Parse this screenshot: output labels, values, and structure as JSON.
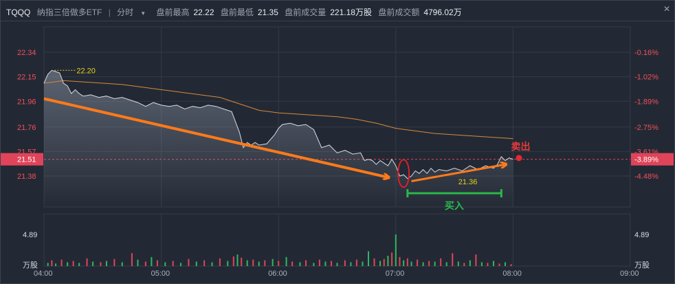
{
  "header": {
    "symbol": "TQQQ",
    "name": "纳指三倍做多ETF",
    "separator": "|",
    "mode": "分时",
    "mode_dropdown_icon": "caret-down-icon",
    "stats": [
      {
        "label": "盘前最高",
        "value": "22.22"
      },
      {
        "label": "盘前最低",
        "value": "21.35"
      },
      {
        "label": "盘前成交量",
        "value": "221.18万股"
      },
      {
        "label": "盘前成交额",
        "value": "4796.02万"
      }
    ],
    "close_icon": "close-icon"
  },
  "chart_data": {
    "type": "line",
    "price_axis_labels": [
      "22.34",
      "22.15",
      "21.96",
      "21.76",
      "21.57",
      "21.38"
    ],
    "price_axis_values": [
      22.34,
      22.15,
      21.96,
      21.76,
      21.57,
      21.38
    ],
    "pct_axis_labels": [
      "-0.16%",
      "-1.02%",
      "-1.89%",
      "-2.75%",
      "-3.61%",
      "-4.48%"
    ],
    "current_price": "21.51",
    "current_pct": "-3.89%",
    "x_tick_labels": [
      "04:00",
      "05:00",
      "06:00",
      "07:00",
      "08:00",
      "09:00"
    ],
    "x_tick_minutes": [
      0,
      60,
      120,
      180,
      240,
      300
    ],
    "ylim": [
      21.3,
      22.4
    ],
    "high_marker": "22.20",
    "low_marker": "21.36",
    "volume_axis_label": "4.89",
    "volume_unit": "万股",
    "price_series": [
      {
        "t": 0,
        "p": 22.1
      },
      {
        "t": 2,
        "p": 22.17
      },
      {
        "t": 4,
        "p": 22.2
      },
      {
        "t": 6,
        "p": 22.19
      },
      {
        "t": 8,
        "p": 22.18
      },
      {
        "t": 10,
        "p": 22.1
      },
      {
        "t": 12,
        "p": 22.08
      },
      {
        "t": 14,
        "p": 22.02
      },
      {
        "t": 16,
        "p": 22.05
      },
      {
        "t": 18,
        "p": 22.02
      },
      {
        "t": 20,
        "p": 22.0
      },
      {
        "t": 24,
        "p": 22.01
      },
      {
        "t": 28,
        "p": 21.99
      },
      {
        "t": 32,
        "p": 22.0
      },
      {
        "t": 36,
        "p": 21.98
      },
      {
        "t": 40,
        "p": 21.99
      },
      {
        "t": 44,
        "p": 21.97
      },
      {
        "t": 48,
        "p": 21.95
      },
      {
        "t": 52,
        "p": 21.92
      },
      {
        "t": 56,
        "p": 21.95
      },
      {
        "t": 60,
        "p": 21.93
      },
      {
        "t": 64,
        "p": 21.92
      },
      {
        "t": 68,
        "p": 21.93
      },
      {
        "t": 72,
        "p": 21.9
      },
      {
        "t": 76,
        "p": 21.92
      },
      {
        "t": 80,
        "p": 21.91
      },
      {
        "t": 84,
        "p": 21.93
      },
      {
        "t": 88,
        "p": 21.92
      },
      {
        "t": 92,
        "p": 21.9
      },
      {
        "t": 96,
        "p": 21.88
      },
      {
        "t": 98,
        "p": 21.8
      },
      {
        "t": 100,
        "p": 21.72
      },
      {
        "t": 102,
        "p": 21.6
      },
      {
        "t": 104,
        "p": 21.64
      },
      {
        "t": 106,
        "p": 21.62
      },
      {
        "t": 108,
        "p": 21.64
      },
      {
        "t": 110,
        "p": 21.62
      },
      {
        "t": 114,
        "p": 21.63
      },
      {
        "t": 118,
        "p": 21.7
      },
      {
        "t": 120,
        "p": 21.75
      },
      {
        "t": 122,
        "p": 21.78
      },
      {
        "t": 126,
        "p": 21.79
      },
      {
        "t": 130,
        "p": 21.77
      },
      {
        "t": 134,
        "p": 21.78
      },
      {
        "t": 138,
        "p": 21.74
      },
      {
        "t": 142,
        "p": 21.6
      },
      {
        "t": 146,
        "p": 21.62
      },
      {
        "t": 150,
        "p": 21.56
      },
      {
        "t": 154,
        "p": 21.58
      },
      {
        "t": 158,
        "p": 21.55
      },
      {
        "t": 162,
        "p": 21.56
      },
      {
        "t": 164,
        "p": 21.5
      },
      {
        "t": 166,
        "p": 21.51
      },
      {
        "t": 168,
        "p": 21.5
      },
      {
        "t": 170,
        "p": 21.47
      },
      {
        "t": 172,
        "p": 21.5
      },
      {
        "t": 174,
        "p": 21.48
      },
      {
        "t": 176,
        "p": 21.46
      },
      {
        "t": 178,
        "p": 21.51
      },
      {
        "t": 180,
        "p": 21.46
      },
      {
        "t": 182,
        "p": 21.38
      },
      {
        "t": 184,
        "p": 21.39
      },
      {
        "t": 186,
        "p": 21.36
      },
      {
        "t": 188,
        "p": 21.38
      },
      {
        "t": 190,
        "p": 21.42
      },
      {
        "t": 192,
        "p": 21.4
      },
      {
        "t": 194,
        "p": 21.43
      },
      {
        "t": 196,
        "p": 21.4
      },
      {
        "t": 198,
        "p": 21.44
      },
      {
        "t": 200,
        "p": 21.41
      },
      {
        "t": 202,
        "p": 21.43
      },
      {
        "t": 206,
        "p": 21.42
      },
      {
        "t": 210,
        "p": 21.44
      },
      {
        "t": 214,
        "p": 21.42
      },
      {
        "t": 218,
        "p": 21.46
      },
      {
        "t": 222,
        "p": 21.43
      },
      {
        "t": 226,
        "p": 21.46
      },
      {
        "t": 230,
        "p": 21.44
      },
      {
        "t": 232,
        "p": 21.47
      },
      {
        "t": 234,
        "p": 21.53
      },
      {
        "t": 236,
        "p": 21.5
      },
      {
        "t": 238,
        "p": 21.52
      },
      {
        "t": 240,
        "p": 21.51
      }
    ],
    "avg_series": [
      {
        "t": 0,
        "p": 22.1
      },
      {
        "t": 10,
        "p": 22.12
      },
      {
        "t": 20,
        "p": 22.11
      },
      {
        "t": 30,
        "p": 22.1
      },
      {
        "t": 40,
        "p": 22.09
      },
      {
        "t": 50,
        "p": 22.07
      },
      {
        "t": 60,
        "p": 22.05
      },
      {
        "t": 70,
        "p": 22.03
      },
      {
        "t": 80,
        "p": 22.01
      },
      {
        "t": 90,
        "p": 21.99
      },
      {
        "t": 100,
        "p": 21.94
      },
      {
        "t": 110,
        "p": 21.89
      },
      {
        "t": 120,
        "p": 21.87
      },
      {
        "t": 130,
        "p": 21.86
      },
      {
        "t": 140,
        "p": 21.85
      },
      {
        "t": 150,
        "p": 21.84
      },
      {
        "t": 160,
        "p": 21.82
      },
      {
        "t": 170,
        "p": 21.79
      },
      {
        "t": 180,
        "p": 21.75
      },
      {
        "t": 190,
        "p": 21.73
      },
      {
        "t": 200,
        "p": 21.71
      },
      {
        "t": 210,
        "p": 21.7
      },
      {
        "t": 220,
        "p": 21.69
      },
      {
        "t": 230,
        "p": 21.68
      },
      {
        "t": 240,
        "p": 21.67
      }
    ],
    "volume_series": [
      {
        "t": 2,
        "v": 0.5,
        "up": true
      },
      {
        "t": 4,
        "v": 0.9,
        "up": false
      },
      {
        "t": 6,
        "v": 0.4,
        "up": true
      },
      {
        "t": 9,
        "v": 1.0,
        "up": false
      },
      {
        "t": 12,
        "v": 0.6,
        "up": true
      },
      {
        "t": 15,
        "v": 0.8,
        "up": false
      },
      {
        "t": 18,
        "v": 0.5,
        "up": true
      },
      {
        "t": 22,
        "v": 1.2,
        "up": false
      },
      {
        "t": 25,
        "v": 0.7,
        "up": true
      },
      {
        "t": 29,
        "v": 0.6,
        "up": false
      },
      {
        "t": 32,
        "v": 0.8,
        "up": true
      },
      {
        "t": 36,
        "v": 1.1,
        "up": false
      },
      {
        "t": 40,
        "v": 0.6,
        "up": true
      },
      {
        "t": 45,
        "v": 2.0,
        "up": false
      },
      {
        "t": 48,
        "v": 1.0,
        "up": true
      },
      {
        "t": 52,
        "v": 0.7,
        "up": false
      },
      {
        "t": 55,
        "v": 1.4,
        "up": true
      },
      {
        "t": 58,
        "v": 0.9,
        "up": false
      },
      {
        "t": 62,
        "v": 0.6,
        "up": true
      },
      {
        "t": 66,
        "v": 0.8,
        "up": false
      },
      {
        "t": 70,
        "v": 0.5,
        "up": true
      },
      {
        "t": 74,
        "v": 1.1,
        "up": false
      },
      {
        "t": 78,
        "v": 0.7,
        "up": true
      },
      {
        "t": 82,
        "v": 0.9,
        "up": false
      },
      {
        "t": 86,
        "v": 0.6,
        "up": true
      },
      {
        "t": 90,
        "v": 1.2,
        "up": false
      },
      {
        "t": 94,
        "v": 0.8,
        "up": true
      },
      {
        "t": 97,
        "v": 1.5,
        "up": false
      },
      {
        "t": 99,
        "v": 1.8,
        "up": true
      },
      {
        "t": 101,
        "v": 1.3,
        "up": false
      },
      {
        "t": 104,
        "v": 0.9,
        "up": true
      },
      {
        "t": 107,
        "v": 1.0,
        "up": false
      },
      {
        "t": 110,
        "v": 0.7,
        "up": true
      },
      {
        "t": 113,
        "v": 0.9,
        "up": false
      },
      {
        "t": 117,
        "v": 1.1,
        "up": true
      },
      {
        "t": 120,
        "v": 0.8,
        "up": false
      },
      {
        "t": 124,
        "v": 1.4,
        "up": true
      },
      {
        "t": 127,
        "v": 0.7,
        "up": false
      },
      {
        "t": 131,
        "v": 0.6,
        "up": true
      },
      {
        "t": 134,
        "v": 0.9,
        "up": false
      },
      {
        "t": 138,
        "v": 0.5,
        "up": true
      },
      {
        "t": 141,
        "v": 1.0,
        "up": false
      },
      {
        "t": 144,
        "v": 0.7,
        "up": true
      },
      {
        "t": 147,
        "v": 0.8,
        "up": false
      },
      {
        "t": 150,
        "v": 0.5,
        "up": true
      },
      {
        "t": 154,
        "v": 0.9,
        "up": false
      },
      {
        "t": 157,
        "v": 0.6,
        "up": true
      },
      {
        "t": 160,
        "v": 1.0,
        "up": false
      },
      {
        "t": 163,
        "v": 0.7,
        "up": true
      },
      {
        "t": 166,
        "v": 2.3,
        "up": true
      },
      {
        "t": 169,
        "v": 1.2,
        "up": false
      },
      {
        "t": 172,
        "v": 0.8,
        "up": true
      },
      {
        "t": 174,
        "v": 1.1,
        "up": false
      },
      {
        "t": 176,
        "v": 1.6,
        "up": true
      },
      {
        "t": 178,
        "v": 2.1,
        "up": false
      },
      {
        "t": 180,
        "v": 4.89,
        "up": true
      },
      {
        "t": 182,
        "v": 1.4,
        "up": false
      },
      {
        "t": 184,
        "v": 0.9,
        "up": true
      },
      {
        "t": 186,
        "v": 1.2,
        "up": false
      },
      {
        "t": 188,
        "v": 0.7,
        "up": true
      },
      {
        "t": 191,
        "v": 1.0,
        "up": false
      },
      {
        "t": 194,
        "v": 0.6,
        "up": true
      },
      {
        "t": 197,
        "v": 0.8,
        "up": false
      },
      {
        "t": 200,
        "v": 0.7,
        "up": true
      },
      {
        "t": 203,
        "v": 1.2,
        "up": false
      },
      {
        "t": 206,
        "v": 0.6,
        "up": true
      },
      {
        "t": 209,
        "v": 2.0,
        "up": false
      },
      {
        "t": 212,
        "v": 0.7,
        "up": true
      },
      {
        "t": 215,
        "v": 0.5,
        "up": false
      },
      {
        "t": 218,
        "v": 0.9,
        "up": true
      },
      {
        "t": 221,
        "v": 1.8,
        "up": false
      },
      {
        "t": 224,
        "v": 0.6,
        "up": true
      },
      {
        "t": 227,
        "v": 0.5,
        "up": false
      },
      {
        "t": 230,
        "v": 0.8,
        "up": true
      },
      {
        "t": 233,
        "v": 0.4,
        "up": false
      },
      {
        "t": 236,
        "v": 0.6,
        "up": true
      },
      {
        "t": 239,
        "v": 0.3,
        "up": false
      }
    ],
    "volume_max": 4.89
  },
  "annotations": {
    "sell_label": "卖出",
    "buy_label": "买入"
  },
  "colors": {
    "background": "#232934",
    "grid": "#333b47",
    "price_line": "#d8dce4",
    "avg_line": "#d98a3a",
    "up": "#2fb862",
    "down": "#e0445a",
    "red_label": "#f0505a",
    "arrow": "#ff7a1a",
    "buy_green": "#29b84a",
    "high_marker": "#e6d21a"
  }
}
